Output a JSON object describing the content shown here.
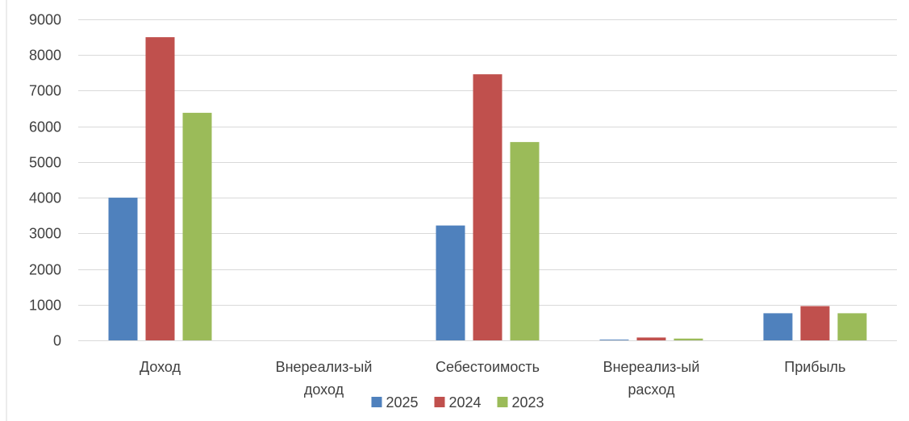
{
  "chart_data": {
    "type": "bar",
    "categories": [
      [
        "Доход"
      ],
      [
        "Внереализ-ый",
        "доход"
      ],
      [
        "Себестоимость"
      ],
      [
        "Внереализ-ый",
        "расход"
      ],
      [
        "Прибыль"
      ]
    ],
    "series": [
      {
        "name": "2025",
        "color": "#4f81bd",
        "values": [
          4000,
          0,
          3220,
          20,
          760
        ]
      },
      {
        "name": "2024",
        "color": "#c0504d",
        "values": [
          8500,
          0,
          7460,
          80,
          960
        ]
      },
      {
        "name": "2023",
        "color": "#9bbb59",
        "values": [
          6380,
          0,
          5560,
          50,
          760
        ]
      }
    ],
    "yticks": [
      "0",
      "1000",
      "2000",
      "3000",
      "4000",
      "5000",
      "6000",
      "7000",
      "8000",
      "9000"
    ],
    "ylim": [
      0,
      9000
    ],
    "grid": true,
    "legend_position": "bottom"
  }
}
